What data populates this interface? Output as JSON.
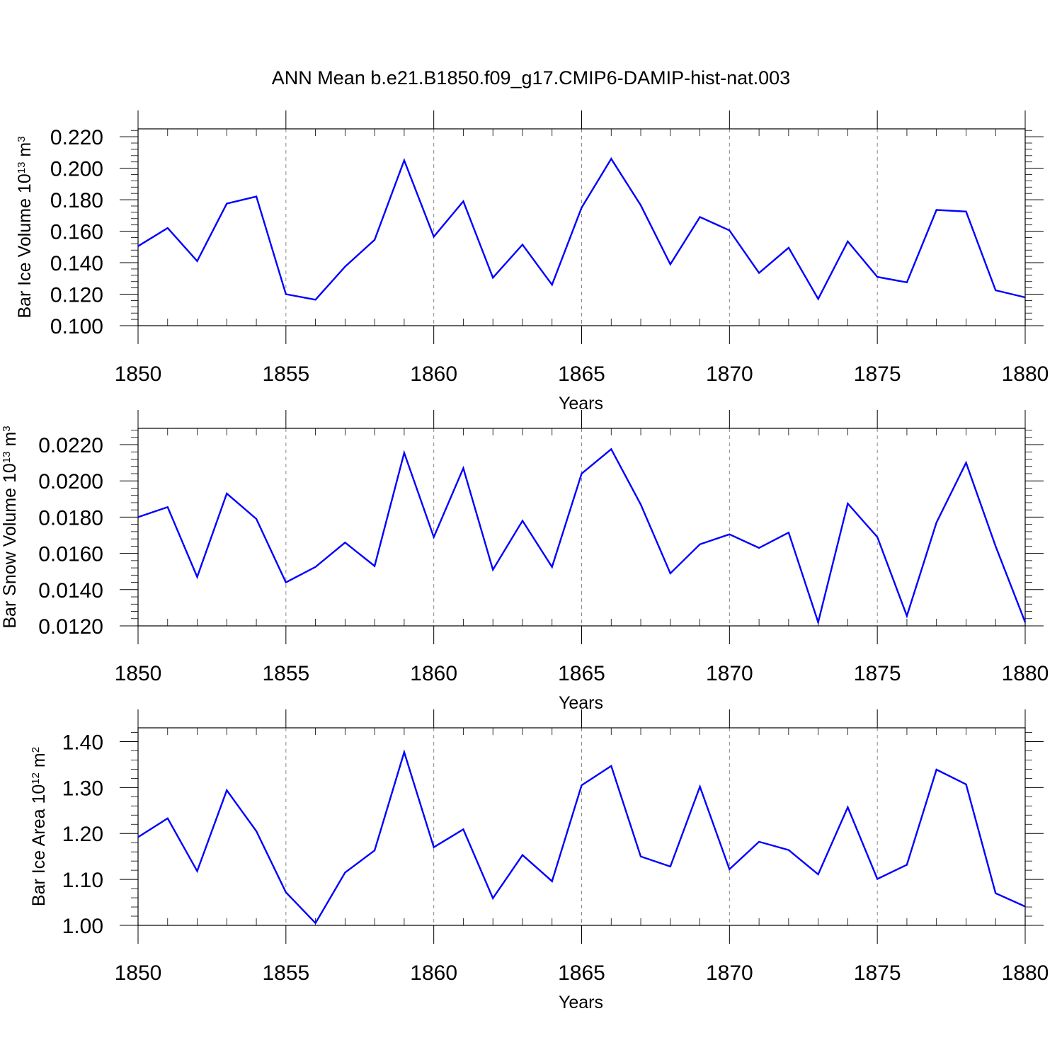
{
  "figure": {
    "title": "ANN Mean b.e21.B1850.f09_g17.CMIP6-DAMIP-hist-nat.003"
  },
  "chart_data": [
    {
      "type": "line",
      "title": "",
      "xlabel": "Years",
      "ylabel": "Bar Ice Volume 10",
      "ylabel_exponent": "13",
      "ylabel_unit": "m",
      "ylabel_unit_exponent": "3",
      "xlim": [
        1850,
        1880
      ],
      "ylim": [
        0.1,
        0.225
      ],
      "xticks": [
        1850,
        1855,
        1860,
        1865,
        1870,
        1875,
        1880
      ],
      "xtick_labels": [
        "1850",
        "1855",
        "1860",
        "1865",
        "1870",
        "1875",
        "1880"
      ],
      "yticks": [
        0.1,
        0.12,
        0.14,
        0.16,
        0.18,
        0.2,
        0.22
      ],
      "ytick_labels": [
        "0.100",
        "0.120",
        "0.140",
        "0.160",
        "0.180",
        "0.200",
        "0.220"
      ],
      "grid": "vertical dashed at major x ticks",
      "color": "#0000ff",
      "series": [
        {
          "x": [
            1850,
            1851,
            1852,
            1853,
            1854,
            1855,
            1856,
            1857,
            1858,
            1859,
            1860,
            1861,
            1862,
            1863,
            1864,
            1865,
            1866,
            1867,
            1868,
            1869,
            1870,
            1871,
            1872,
            1873,
            1874,
            1875,
            1876,
            1877,
            1878,
            1879,
            1880
          ],
          "values": [
            0.1505,
            0.162,
            0.141,
            0.1775,
            0.182,
            0.12,
            0.1165,
            0.1375,
            0.1545,
            0.205,
            0.1565,
            0.179,
            0.1305,
            0.1515,
            0.126,
            0.175,
            0.206,
            0.1765,
            0.139,
            0.169,
            0.1605,
            0.1335,
            0.1495,
            0.117,
            0.1535,
            0.131,
            0.1275,
            0.1735,
            0.1725,
            0.1225,
            0.118
          ]
        }
      ]
    },
    {
      "type": "line",
      "title": "",
      "xlabel": "Years",
      "ylabel": "Bar Snow Volume 10",
      "ylabel_exponent": "13",
      "ylabel_unit": "m",
      "ylabel_unit_exponent": "3",
      "xlim": [
        1850,
        1880
      ],
      "ylim": [
        0.012,
        0.0229
      ],
      "xticks": [
        1850,
        1855,
        1860,
        1865,
        1870,
        1875,
        1880
      ],
      "xtick_labels": [
        "1850",
        "1855",
        "1860",
        "1865",
        "1870",
        "1875",
        "1880"
      ],
      "yticks": [
        0.012,
        0.014,
        0.016,
        0.018,
        0.02,
        0.022
      ],
      "ytick_labels": [
        "0.0120",
        "0.0140",
        "0.0160",
        "0.0180",
        "0.0200",
        "0.0220"
      ],
      "grid": "vertical dashed at major x ticks",
      "color": "#0000ff",
      "series": [
        {
          "x": [
            1850,
            1851,
            1852,
            1853,
            1854,
            1855,
            1856,
            1857,
            1858,
            1859,
            1860,
            1861,
            1862,
            1863,
            1864,
            1865,
            1866,
            1867,
            1868,
            1869,
            1870,
            1871,
            1872,
            1873,
            1874,
            1875,
            1876,
            1877,
            1878,
            1879,
            1880
          ],
          "values": [
            0.018,
            0.01855,
            0.0147,
            0.0193,
            0.0179,
            0.0144,
            0.01525,
            0.0166,
            0.0153,
            0.02155,
            0.0169,
            0.0207,
            0.0151,
            0.0178,
            0.01525,
            0.0204,
            0.02175,
            0.0187,
            0.0149,
            0.0165,
            0.01705,
            0.0163,
            0.01715,
            0.0122,
            0.01875,
            0.0169,
            0.01255,
            0.0177,
            0.021,
            0.0164,
            0.0122
          ]
        }
      ]
    },
    {
      "type": "line",
      "title": "",
      "xlabel": "Years",
      "ylabel": "Bar Ice Area 10",
      "ylabel_exponent": "12",
      "ylabel_unit": "m",
      "ylabel_unit_exponent": "2",
      "xlim": [
        1850,
        1880
      ],
      "ylim": [
        1.0,
        1.43
      ],
      "xticks": [
        1850,
        1855,
        1860,
        1865,
        1870,
        1875,
        1880
      ],
      "xtick_labels": [
        "1850",
        "1855",
        "1860",
        "1865",
        "1870",
        "1875",
        "1880"
      ],
      "yticks": [
        1.0,
        1.1,
        1.2,
        1.3,
        1.4
      ],
      "ytick_labels": [
        "1.00",
        "1.10",
        "1.20",
        "1.30",
        "1.40"
      ],
      "grid": "vertical dashed at major x ticks",
      "color": "#0000ff",
      "series": [
        {
          "x": [
            1850,
            1851,
            1852,
            1853,
            1854,
            1855,
            1856,
            1857,
            1858,
            1859,
            1860,
            1861,
            1862,
            1863,
            1864,
            1865,
            1866,
            1867,
            1868,
            1869,
            1870,
            1871,
            1872,
            1873,
            1874,
            1875,
            1876,
            1877,
            1878,
            1879,
            1880
          ],
          "values": [
            1.192,
            1.233,
            1.118,
            1.294,
            1.205,
            1.072,
            1.005,
            1.115,
            1.163,
            1.377,
            1.17,
            1.209,
            1.059,
            1.153,
            1.096,
            1.305,
            1.347,
            1.15,
            1.128,
            1.302,
            1.122,
            1.182,
            1.164,
            1.111,
            1.257,
            1.101,
            1.132,
            1.339,
            1.307,
            1.07,
            1.041
          ]
        }
      ]
    }
  ]
}
